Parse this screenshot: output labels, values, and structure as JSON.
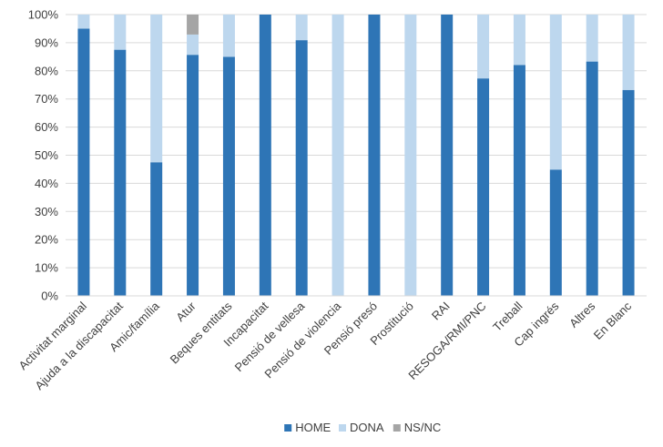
{
  "chart_data": {
    "type": "bar",
    "stacked": true,
    "categories": [
      "Activitat marginal",
      "Ajuda a la discapacitat",
      "Amic/família",
      "Atur",
      "Beques entitats",
      "Incapacitat",
      "Pensió de vellesa",
      "Pensió de violencia",
      "Pensió presó",
      "Prostitució",
      "RAI",
      "RESOGA/RMI/PNC",
      "Treball",
      "Cap ingrés",
      "Altres",
      "En Blanc"
    ],
    "series": [
      {
        "name": "HOME",
        "color": "#2e75b6",
        "values": [
          95,
          87.5,
          47.5,
          85.7,
          85,
          100,
          90.9,
          0,
          100,
          0,
          100,
          77.3,
          82.1,
          44.9,
          83.3,
          73.2
        ]
      },
      {
        "name": "DONA",
        "color": "#bdd7ee",
        "values": [
          5,
          12.5,
          52.5,
          7.2,
          15,
          0,
          9.1,
          100,
          0,
          100,
          0,
          22.7,
          17.9,
          55.1,
          16.7,
          26.8
        ]
      },
      {
        "name": "NS/NC",
        "color": "#a5a5a5",
        "values": [
          0,
          0,
          0,
          7.1,
          0,
          0,
          0,
          0,
          0,
          0,
          0,
          0,
          0,
          0,
          0,
          0
        ]
      }
    ],
    "yticks": [
      "0%",
      "10%",
      "20%",
      "30%",
      "40%",
      "50%",
      "60%",
      "70%",
      "80%",
      "90%",
      "100%"
    ],
    "ylim": [
      0,
      100
    ],
    "grid": true,
    "legend": "bottom"
  }
}
